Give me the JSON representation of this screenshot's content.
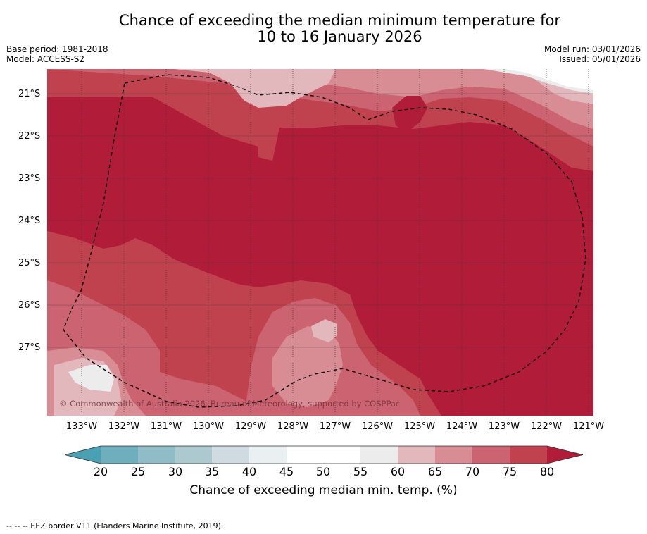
{
  "title": {
    "line1": "Chance of exceeding the median minimum temperature for",
    "line2": "10 to 16 January 2026"
  },
  "meta": {
    "base_period": "Base period: 1981-2018",
    "model": "Model: ACCESS-S2",
    "model_run": "Model run: 03/01/2026",
    "issued": "Issued: 05/01/2026"
  },
  "map": {
    "lat_labels": [
      "21°S",
      "22°S",
      "23°S",
      "24°S",
      "25°S",
      "26°S",
      "27°S"
    ],
    "lon_labels": [
      "133°W",
      "132°W",
      "131°W",
      "130°W",
      "129°W",
      "128°W",
      "127°W",
      "126°W",
      "125°W",
      "124°W",
      "123°W",
      "122°W",
      "121°W"
    ],
    "copyright": "© Commonwealth of Australia 2026, Bureau of Meteorology, supported by COSPPac",
    "colors": {
      "c80": "#b11c38",
      "c75": "#c1424f",
      "c70": "#cb6370",
      "c65": "#d88c94",
      "c60": "#e3b8bd",
      "c55": "#ececec",
      "c50": "#ffffff"
    }
  },
  "colorbar": {
    "ticks": [
      "20",
      "25",
      "30",
      "35",
      "40",
      "45",
      "50",
      "55",
      "60",
      "65",
      "70",
      "75",
      "80"
    ],
    "colors": [
      "#4aa1b3",
      "#6faebc",
      "#8fbcc7",
      "#abc9cf",
      "#cfdbe0",
      "#eaf0f2",
      "#ffffff",
      "#ffffff",
      "#ececec",
      "#e3b8bd",
      "#d88c94",
      "#cb6370",
      "#c1424f",
      "#b11c38"
    ],
    "label": "Chance of exceeding median min. temp. (%)"
  },
  "legend": {
    "eez": "--  --  -- EEZ border V11 (Flanders Marine Institute, 2019)."
  }
}
